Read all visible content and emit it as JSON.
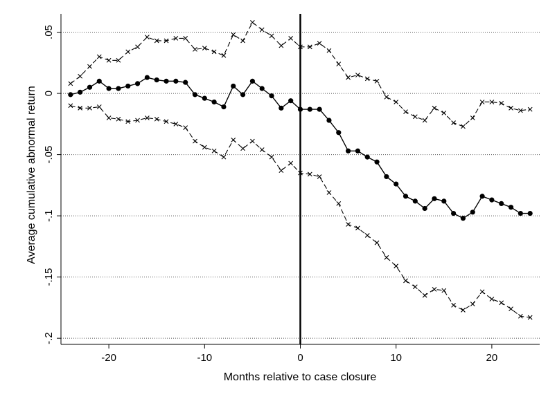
{
  "chart_data": {
    "type": "line",
    "title": "",
    "xlabel": "Months relative to case closure",
    "ylabel": "Average cumulative abnormal return",
    "xlim": [
      -25,
      25
    ],
    "ylim": [
      -0.205,
      0.065
    ],
    "x_ticks": [
      -20,
      -10,
      0,
      10,
      20
    ],
    "x_tick_labels": [
      "-20",
      "-10",
      "0",
      "10",
      "20"
    ],
    "y_ticks": [
      0.05,
      0,
      -0.05,
      -0.1,
      -0.15,
      -0.2
    ],
    "y_tick_labels": [
      ".05",
      "0",
      "-.05",
      "-.1",
      "-.15",
      "-.2"
    ],
    "y_grid": true,
    "x_grid": false,
    "legend": "none",
    "reference_line_x": 0,
    "x": [
      -24,
      -23,
      -22,
      -21,
      -20,
      -19,
      -18,
      -17,
      -16,
      -15,
      -14,
      -13,
      -12,
      -11,
      -10,
      -9,
      -8,
      -7,
      -6,
      -5,
      -4,
      -3,
      -2,
      -1,
      0,
      1,
      2,
      3,
      4,
      5,
      6,
      7,
      8,
      9,
      10,
      11,
      12,
      13,
      14,
      15,
      16,
      17,
      18,
      19,
      20,
      21,
      22,
      23,
      24
    ],
    "series": [
      {
        "style": "dashed-x",
        "values": [
          0.008,
          0.014,
          0.022,
          0.03,
          0.027,
          0.027,
          0.034,
          0.038,
          0.046,
          0.043,
          0.043,
          0.045,
          0.045,
          0.036,
          0.037,
          0.034,
          0.031,
          0.048,
          0.043,
          0.058,
          0.052,
          0.047,
          0.039,
          0.045,
          0.038,
          0.038,
          0.041,
          0.035,
          0.024,
          0.013,
          0.015,
          0.012,
          0.01,
          -0.003,
          -0.007,
          -0.015,
          -0.019,
          -0.022,
          -0.012,
          -0.016,
          -0.024,
          -0.027,
          -0.02,
          -0.007,
          -0.007,
          -0.008,
          -0.012,
          -0.014,
          -0.013
        ]
      },
      {
        "style": "solid-dot",
        "values": [
          -0.001,
          0.001,
          0.005,
          0.01,
          0.004,
          0.004,
          0.006,
          0.008,
          0.013,
          0.011,
          0.01,
          0.01,
          0.009,
          -0.001,
          -0.004,
          -0.007,
          -0.011,
          0.006,
          -0.001,
          0.01,
          0.004,
          -0.002,
          -0.012,
          -0.006,
          -0.013,
          -0.013,
          -0.013,
          -0.022,
          -0.032,
          -0.047,
          -0.047,
          -0.052,
          -0.056,
          -0.068,
          -0.074,
          -0.084,
          -0.088,
          -0.094,
          -0.086,
          -0.088,
          -0.098,
          -0.102,
          -0.097,
          -0.084,
          -0.087,
          -0.09,
          -0.093,
          -0.098,
          -0.098
        ]
      },
      {
        "style": "dashed-x",
        "values": [
          -0.01,
          -0.012,
          -0.012,
          -0.011,
          -0.02,
          -0.021,
          -0.023,
          -0.022,
          -0.02,
          -0.021,
          -0.023,
          -0.025,
          -0.028,
          -0.039,
          -0.044,
          -0.047,
          -0.052,
          -0.038,
          -0.045,
          -0.039,
          -0.046,
          -0.052,
          -0.063,
          -0.057,
          -0.065,
          -0.066,
          -0.068,
          -0.081,
          -0.09,
          -0.107,
          -0.11,
          -0.116,
          -0.122,
          -0.134,
          -0.141,
          -0.153,
          -0.158,
          -0.165,
          -0.16,
          -0.161,
          -0.173,
          -0.177,
          -0.172,
          -0.162,
          -0.168,
          -0.171,
          -0.176,
          -0.182,
          -0.183
        ]
      }
    ]
  }
}
